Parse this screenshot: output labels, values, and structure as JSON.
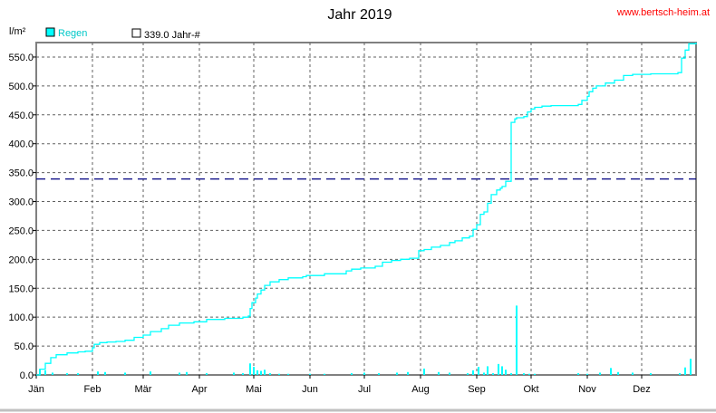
{
  "header": {
    "title": "Jahr 2019",
    "website": "www.bertsch-heim.at",
    "unit": "l/m²"
  },
  "legend": {
    "rain_label": "Regen",
    "avg_label": "339.0 Jahr-#",
    "rain_color": "#00ffff",
    "avg_color": "#000080"
  },
  "chart_data": {
    "type": "line",
    "title": "Jahr 2019",
    "ylabel": "l/m²",
    "ylim": [
      0,
      575
    ],
    "y_ticks": [
      "0.0",
      "50.0",
      "100.0",
      "150.0",
      "200.0",
      "250.0",
      "300.0",
      "350.0",
      "400.0",
      "450.0",
      "500.0",
      "550.0"
    ],
    "x_tick_labels": [
      "Jän",
      "Feb",
      "Mär",
      "Apr",
      "Mai",
      "Jun",
      "Jul",
      "Aug",
      "Sep",
      "Okt",
      "Nov",
      "Dez"
    ],
    "xlim_days": [
      1,
      365
    ],
    "grid": true,
    "legend_position": "top-left",
    "reference_line": {
      "name": "339.0 Jahr-#",
      "value": 339.0
    },
    "series": [
      {
        "name": "Regen",
        "kind": "cumulative",
        "x_day": [
          1,
          3,
          6,
          9,
          12,
          18,
          24,
          28,
          32,
          33,
          36,
          40,
          45,
          50,
          55,
          60,
          64,
          70,
          74,
          80,
          88,
          95,
          105,
          115,
          118,
          119,
          120,
          122,
          123,
          125,
          127,
          130,
          135,
          140,
          148,
          150,
          160,
          172,
          175,
          180,
          188,
          192,
          197,
          202,
          207,
          212,
          215,
          219,
          224,
          229,
          232,
          236,
          240,
          242,
          244,
          246,
          248,
          250,
          252,
          255,
          257,
          258,
          260,
          263,
          265,
          266,
          270,
          272,
          274,
          276,
          280,
          285,
          300,
          302,
          305,
          306,
          308,
          310,
          315,
          320,
          325,
          330,
          340,
          355,
          357,
          359,
          361,
          365
        ],
        "y": [
          0,
          10,
          20,
          30,
          35,
          38,
          40,
          41,
          47,
          53,
          56,
          57,
          58,
          60,
          65,
          69,
          75,
          80,
          86,
          90,
          92,
          96,
          98,
          100,
          102,
          115,
          125,
          133,
          140,
          147,
          155,
          161,
          165,
          168,
          170,
          172,
          175,
          180,
          183,
          185,
          188,
          195,
          198,
          200,
          202,
          215,
          217,
          221,
          224,
          229,
          232,
          237,
          240,
          252,
          260,
          278,
          282,
          297,
          312,
          320,
          323,
          326,
          335,
          437,
          443,
          445,
          447,
          455,
          460,
          463,
          465,
          466,
          468,
          475,
          482,
          490,
          496,
          500,
          505,
          510,
          518,
          520,
          521,
          523,
          548,
          562,
          573,
          575
        ]
      },
      {
        "name": "Regen",
        "kind": "daily",
        "x_day": [
          3,
          6,
          10,
          18,
          24,
          35,
          39,
          50,
          64,
          80,
          84,
          95,
          110,
          115,
          119,
          121,
          123,
          125,
          127,
          130,
          135,
          140,
          152,
          160,
          175,
          182,
          190,
          200,
          206,
          215,
          223,
          229,
          239,
          242,
          245,
          248,
          250,
          253,
          256,
          258,
          260,
          263,
          266,
          270,
          273,
          276,
          300,
          305,
          312,
          318,
          322,
          330,
          340,
          356,
          359,
          362
        ],
        "y": [
          10,
          8,
          4,
          3,
          3,
          6,
          5,
          4,
          6,
          4,
          5,
          3,
          4,
          3,
          20,
          14,
          8,
          7,
          9,
          3,
          2,
          2,
          2,
          2,
          3,
          4,
          3,
          4,
          5,
          11,
          5,
          4,
          3,
          8,
          14,
          4,
          15,
          3,
          19,
          15,
          9,
          3,
          120,
          3,
          2,
          2,
          3,
          2,
          4,
          12,
          5,
          4,
          3,
          3,
          13,
          28
        ]
      }
    ]
  }
}
